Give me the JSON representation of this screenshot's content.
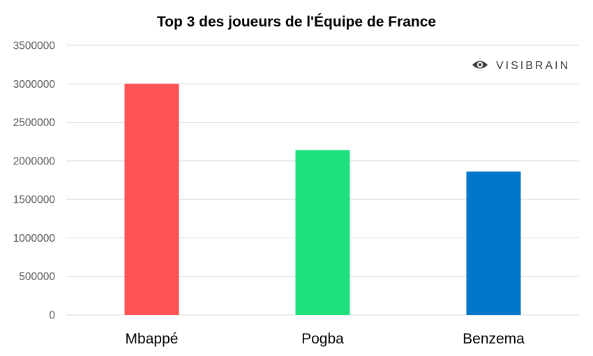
{
  "chart_data": {
    "type": "bar",
    "title": "Top 3 des joueurs de l'Équipe de France",
    "categories": [
      "Mbappé",
      "Pogba",
      "Benzema"
    ],
    "values": [
      3000000,
      2140000,
      1860000
    ],
    "colors": [
      "#fe5254",
      "#1ee07d",
      "#0177cb"
    ],
    "ylim": [
      0,
      3500000
    ],
    "yticks": [
      "0",
      "500000",
      "1000000",
      "1500000",
      "2000000",
      "2500000",
      "3000000",
      "3500000"
    ],
    "xlabel": "",
    "ylabel": "",
    "grid": true,
    "legend": "none"
  },
  "watermark": {
    "text": "VISIBRAIN",
    "icon": "eye-icon"
  }
}
